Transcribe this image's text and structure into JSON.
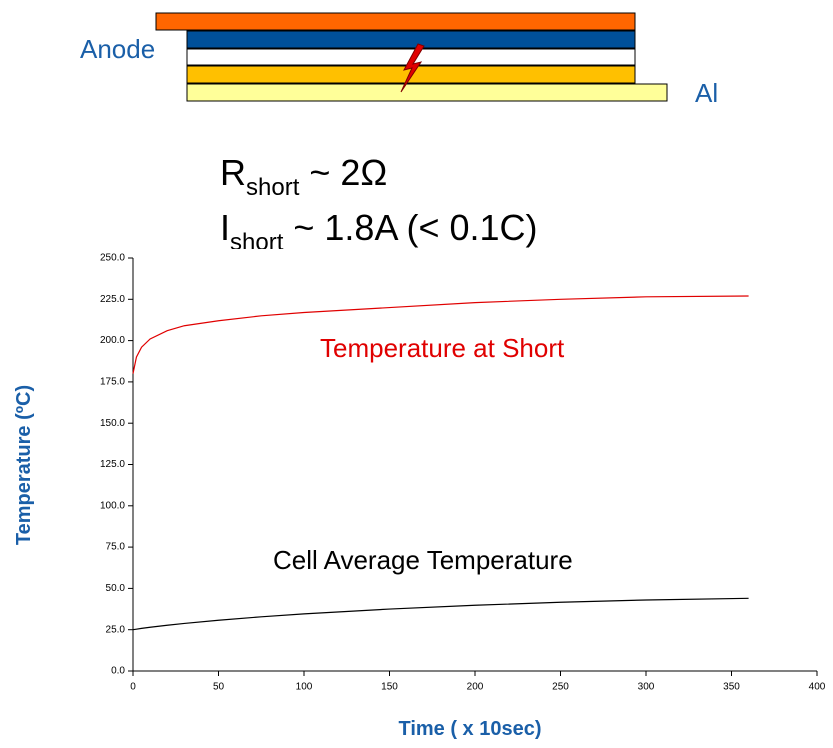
{
  "diagram": {
    "labels": [
      "Anode",
      "Al"
    ],
    "formulas": [
      {
        "main": "R",
        "sub": "short",
        "rest": " ~ 2Ω"
      },
      {
        "main": "I",
        "sub": "short",
        "rest": " ~ 1.8A (< 0.1C)"
      }
    ]
  },
  "chart_data": {
    "type": "line",
    "x_label": "Time ( x 10sec)",
    "y_label": "Temperature (ºC)",
    "x": [
      0,
      2,
      5,
      10,
      20,
      30,
      50,
      75,
      100,
      150,
      200,
      250,
      300,
      360
    ],
    "series": [
      {
        "name": "Temperature at Short",
        "color": "#e00000",
        "values": [
          180,
          190,
          196,
          201,
          206,
          209,
          212,
          215,
          217,
          220,
          223,
          225,
          226.5,
          227
        ]
      },
      {
        "name": "Cell Average Temperature",
        "color": "#000000",
        "values": [
          25,
          25.3,
          25.8,
          26.5,
          27.7,
          28.8,
          30.7,
          32.8,
          34.6,
          37.5,
          39.8,
          41.6,
          43,
          44
        ]
      }
    ],
    "xlim": [
      0,
      400
    ],
    "xticks": [
      0,
      50,
      100,
      150,
      200,
      250,
      300,
      350,
      400
    ],
    "ylim": [
      0,
      250
    ],
    "yticks": [
      {
        "value": 0,
        "label": "0.0"
      },
      {
        "value": 25,
        "label": "25.0"
      },
      {
        "value": 50,
        "label": "50.0"
      },
      {
        "value": 75,
        "label": "75.0"
      },
      {
        "value": 100,
        "label": "100.0"
      },
      {
        "value": 125,
        "label": "125.0"
      },
      {
        "value": 150,
        "label": "150.0"
      },
      {
        "value": 175,
        "label": "175.0"
      },
      {
        "value": 200,
        "label": "200.0"
      },
      {
        "value": 225,
        "label": "225.0"
      },
      {
        "value": 250,
        "label": "250.0"
      }
    ]
  }
}
